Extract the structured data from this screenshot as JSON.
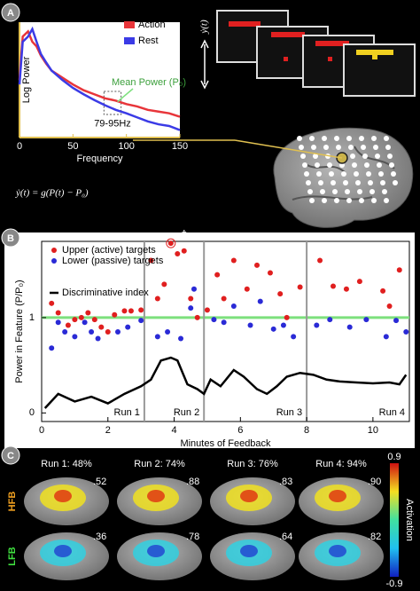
{
  "panel_labels": [
    "A",
    "B",
    "C"
  ],
  "equation": "ẏ(t) = g(P(t) − P₀)",
  "screen_axis_label": "ẏ(t)",
  "chart_data": [
    {
      "type": "line",
      "y_label": "Log Power",
      "x_label": "Frequency",
      "xlim": [
        0,
        150
      ],
      "ylim": [
        0,
        10
      ],
      "xticks": [
        0,
        50,
        100,
        150
      ],
      "x": [
        0,
        3,
        8,
        12,
        16,
        20,
        25,
        30,
        40,
        50,
        60,
        70,
        80,
        90,
        100,
        110,
        120,
        130,
        140,
        150
      ],
      "series": [
        {
          "name": "Action",
          "color": "#e8353a",
          "values": [
            5,
            8.75,
            9.2,
            8.3,
            7.9,
            7.1,
            6.4,
            5.8,
            5.2,
            4.6,
            4.1,
            3.75,
            3.4,
            3.2,
            2.9,
            2.7,
            2.4,
            2.25,
            2.1,
            1.8
          ]
        },
        {
          "name": "Rest",
          "color": "#3b3be6",
          "values": [
            4.6,
            8.3,
            8.75,
            9.4,
            8.3,
            7.25,
            6.5,
            5.8,
            5,
            4.3,
            3.75,
            3.25,
            2.8,
            2.4,
            2.1,
            1.75,
            1.4,
            1.15,
            1,
            0.65
          ]
        }
      ],
      "annotations": [
        "Mean Power (P₀)",
        "79-95Hz"
      ]
    },
    {
      "type": "scatter",
      "y_label": "Power in Feature (P/P₀)",
      "x_label": "Minutes of Feedback",
      "xlim": [
        0,
        11.1
      ],
      "ylim": [
        -0.09,
        1.8
      ],
      "xticks": [
        0,
        2,
        4,
        6,
        8,
        10
      ],
      "yticks": [
        0,
        1
      ],
      "reference_line": {
        "value": 1,
        "color": "#7de07d"
      },
      "run_boundaries": [
        3.1,
        4.9,
        8.0
      ],
      "runs": [
        "Run 1",
        "Run 2",
        "Run 3",
        "Run 4"
      ],
      "annotation": "†",
      "series": [
        {
          "name": "Upper (active) targets",
          "color": "#e01f1f",
          "type": "scatter",
          "x": [
            0.3,
            0.5,
            0.8,
            1.0,
            1.2,
            1.4,
            1.6,
            1.8,
            2.0,
            2.2,
            2.5,
            2.7,
            3.0,
            3.3,
            3.5,
            3.7,
            3.9,
            4.1,
            4.3,
            4.5,
            4.7,
            5.0,
            5.3,
            5.5,
            5.8,
            6.2,
            6.5,
            6.9,
            7.2,
            7.4,
            7.8,
            8.4,
            8.8,
            9.2,
            9.6,
            10.3,
            10.5,
            10.8
          ],
          "y": [
            1.15,
            1.05,
            0.92,
            0.98,
            1.0,
            1.05,
            0.98,
            0.9,
            0.85,
            1.03,
            1.07,
            1.07,
            1.08,
            1.6,
            1.2,
            1.35,
            1.78,
            1.67,
            1.7,
            1.2,
            1.0,
            1.08,
            1.45,
            1.2,
            1.6,
            1.3,
            1.55,
            1.47,
            1.25,
            1.0,
            1.32,
            1.6,
            1.33,
            1.3,
            1.38,
            1.28,
            1.12,
            1.5
          ]
        },
        {
          "name": "Lower (passive) targets",
          "color": "#2a2ad6",
          "type": "scatter",
          "x": [
            0.3,
            0.5,
            0.7,
            1.0,
            1.3,
            1.5,
            1.7,
            2.3,
            2.6,
            3.0,
            3.5,
            3.8,
            4.2,
            4.5,
            4.6,
            5.2,
            5.5,
            5.8,
            6.3,
            6.6,
            7.0,
            7.3,
            7.6,
            8.3,
            8.7,
            9.3,
            9.8,
            10.4,
            10.7,
            11.0
          ],
          "y": [
            0.68,
            0.95,
            0.85,
            0.8,
            0.95,
            0.85,
            0.78,
            0.85,
            0.9,
            0.97,
            0.8,
            0.85,
            0.78,
            1.1,
            1.3,
            0.98,
            0.95,
            1.12,
            0.92,
            1.17,
            0.88,
            0.92,
            0.8,
            0.92,
            0.98,
            0.9,
            0.98,
            0.8,
            0.97,
            0.85
          ]
        },
        {
          "name": "Discriminative index",
          "color": "#000000",
          "type": "line",
          "x": [
            0.1,
            0.5,
            1.0,
            1.5,
            2.0,
            2.5,
            3.0,
            3.3,
            3.6,
            3.9,
            4.1,
            4.4,
            4.7,
            4.9,
            5.1,
            5.4,
            5.8,
            6.1,
            6.5,
            6.8,
            7.1,
            7.4,
            7.8,
            8.2,
            8.6,
            9.0,
            9.5,
            10.0,
            10.5,
            10.8,
            11.0
          ],
          "y": [
            0.05,
            0.2,
            0.12,
            0.17,
            0.1,
            0.2,
            0.28,
            0.35,
            0.55,
            0.58,
            0.55,
            0.3,
            0.25,
            0.2,
            0.35,
            0.28,
            0.45,
            0.38,
            0.25,
            0.2,
            0.28,
            0.38,
            0.42,
            0.4,
            0.35,
            0.33,
            0.32,
            0.31,
            0.32,
            0.3,
            0.4
          ]
        }
      ]
    }
  ],
  "brain_maps": {
    "rows": [
      "HFB",
      "LFB"
    ],
    "columns": [
      {
        "title": "Run 1: 48%",
        "scores": [
          ".52",
          ".36"
        ]
      },
      {
        "title": "Run 2: 74%",
        "scores": [
          ".88",
          ".78"
        ]
      },
      {
        "title": "Run 3: 76%",
        "scores": [
          ".83",
          ".64"
        ]
      },
      {
        "title": "Run 4: 94%",
        "scores": [
          ".90",
          ".82"
        ]
      }
    ],
    "colorbar": {
      "ticks": [
        0.9,
        -0.9
      ],
      "label": "Activation"
    }
  }
}
